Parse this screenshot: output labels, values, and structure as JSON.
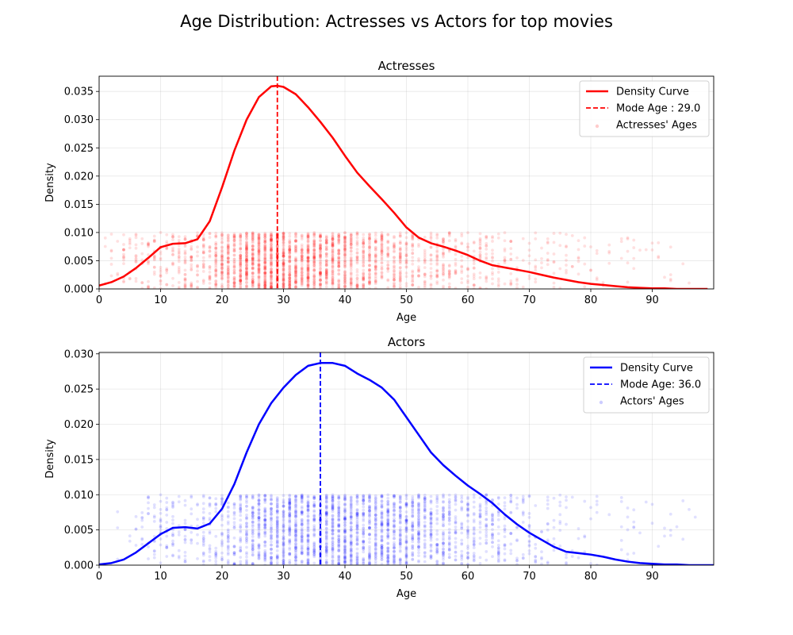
{
  "figure": {
    "title": "Age Distribution: Actresses vs Actors for top movies"
  },
  "chart_data": [
    {
      "type": "line",
      "title": "Actresses",
      "xlabel": "Age",
      "ylabel": "Density",
      "xlim": [
        0,
        100
      ],
      "ylim": [
        0,
        0.0377
      ],
      "xticks": [
        0,
        10,
        20,
        30,
        40,
        50,
        60,
        70,
        80,
        90
      ],
      "yticks": [
        0.0,
        0.005,
        0.01,
        0.015,
        0.02,
        0.025,
        0.03,
        0.035
      ],
      "ytick_labels": [
        "0.000",
        "0.005",
        "0.010",
        "0.015",
        "0.020",
        "0.025",
        "0.030",
        "0.035"
      ],
      "grid": true,
      "legend_position": "upper right",
      "color": "#ff0000",
      "series": [
        {
          "name": "Density Curve",
          "kind": "line",
          "x": [
            0,
            2,
            4,
            6,
            8,
            10,
            12,
            14,
            16,
            18,
            20,
            22,
            24,
            26,
            28,
            29,
            30,
            32,
            34,
            36,
            38,
            40,
            42,
            44,
            46,
            48,
            50,
            52,
            54,
            56,
            58,
            60,
            62,
            64,
            66,
            68,
            70,
            72,
            74,
            76,
            78,
            80,
            82,
            84,
            86,
            88,
            90,
            92,
            94,
            96,
            99
          ],
          "y": [
            0.0006,
            0.0012,
            0.0022,
            0.0037,
            0.0055,
            0.0074,
            0.008,
            0.0081,
            0.0088,
            0.012,
            0.018,
            0.0245,
            0.03,
            0.034,
            0.0359,
            0.036,
            0.0358,
            0.0345,
            0.0322,
            0.0296,
            0.0268,
            0.0236,
            0.0206,
            0.0182,
            0.0159,
            0.0135,
            0.0109,
            0.0091,
            0.0081,
            0.0075,
            0.0068,
            0.006,
            0.005,
            0.0042,
            0.0038,
            0.0034,
            0.003,
            0.0025,
            0.002,
            0.0016,
            0.0012,
            0.0009,
            0.0007,
            0.0005,
            0.0003,
            0.0002,
            0.0001,
            0.0001,
            0.0,
            0.0,
            0.0
          ]
        },
        {
          "name": "Mode Age : 29.0",
          "kind": "vline",
          "x": 29.0
        },
        {
          "name": "Actresses' Ages",
          "kind": "scatter",
          "y_jitter_range": [
            0,
            0.01
          ],
          "age_range": [
            1,
            96
          ],
          "peak_age": 30
        }
      ]
    },
    {
      "type": "line",
      "title": "Actors",
      "xlabel": "Age",
      "ylabel": "Density",
      "xlim": [
        0,
        100
      ],
      "ylim": [
        0,
        0.0302
      ],
      "xticks": [
        0,
        10,
        20,
        30,
        40,
        50,
        60,
        70,
        80,
        90
      ],
      "yticks": [
        0.0,
        0.005,
        0.01,
        0.015,
        0.02,
        0.025,
        0.03
      ],
      "ytick_labels": [
        "0.000",
        "0.005",
        "0.010",
        "0.015",
        "0.020",
        "0.025",
        "0.030"
      ],
      "grid": true,
      "legend_position": "upper right",
      "color": "#0000ff",
      "series": [
        {
          "name": "Density Curve",
          "kind": "line",
          "x": [
            0,
            2,
            4,
            6,
            8,
            10,
            12,
            14,
            16,
            18,
            20,
            22,
            24,
            26,
            28,
            30,
            32,
            34,
            36,
            38,
            40,
            42,
            44,
            46,
            48,
            50,
            52,
            54,
            56,
            58,
            60,
            62,
            64,
            66,
            68,
            70,
            72,
            74,
            76,
            78,
            80,
            82,
            84,
            86,
            88,
            90,
            92,
            94,
            96,
            100
          ],
          "y": [
            0.0001,
            0.0003,
            0.0008,
            0.0018,
            0.0031,
            0.0044,
            0.0053,
            0.0054,
            0.0052,
            0.0059,
            0.008,
            0.0115,
            0.016,
            0.02,
            0.023,
            0.0252,
            0.027,
            0.0283,
            0.0287,
            0.0287,
            0.0283,
            0.0272,
            0.0263,
            0.0252,
            0.0235,
            0.021,
            0.0185,
            0.016,
            0.0142,
            0.0127,
            0.0113,
            0.0101,
            0.0088,
            0.0072,
            0.0058,
            0.0046,
            0.0036,
            0.0026,
            0.0019,
            0.0017,
            0.0015,
            0.0012,
            0.0008,
            0.0005,
            0.0003,
            0.0002,
            0.0001,
            0.0001,
            0.0,
            0.0
          ]
        },
        {
          "name": "Mode Age: 36.0",
          "kind": "vline",
          "x": 36.0
        },
        {
          "name": "Actors' Ages",
          "kind": "scatter",
          "y_jitter_range": [
            0,
            0.01
          ],
          "age_range": [
            3,
            97
          ],
          "peak_age": 38
        }
      ]
    }
  ]
}
